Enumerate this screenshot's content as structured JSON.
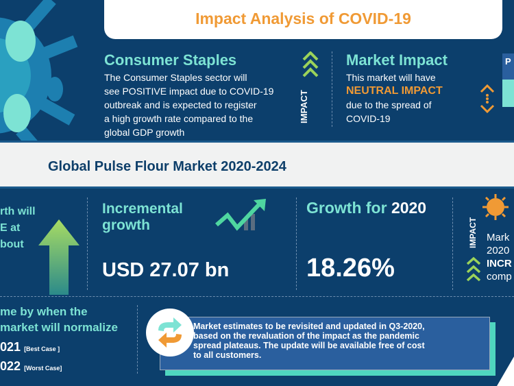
{
  "header": {
    "title": "Impact Analysis of COVID-19"
  },
  "consumer": {
    "title": "Consumer Staples",
    "lines": [
      "The Consumer Staples sector will",
      "see POSITIVE impact due to COVID-19",
      "outbreak and is expected to register",
      "a high growth rate compared to the",
      "global GDP growth"
    ],
    "impact_label": "IMPACT"
  },
  "market_impact": {
    "title": "Market Impact",
    "line1": "This market will have",
    "highlight": "NEUTRAL IMPACT",
    "line2": "due to the spread of",
    "line3": "COVID-19",
    "right_box_label": "P"
  },
  "band": {
    "title": "Global Pulse Flour Market 2020-2024"
  },
  "left_col": {
    "lines": [
      "rth will",
      "E at",
      "bout"
    ]
  },
  "incremental": {
    "title_1": "Incremental",
    "title_2": "growth",
    "value": "USD 27.07 bn"
  },
  "growth": {
    "title": "Growth for",
    "year": "2020",
    "value": "18.26%"
  },
  "right_col": {
    "impact_label": "IMPACT",
    "l1": "Mark",
    "l2": "2020",
    "l3": "INCR",
    "l4": "comp"
  },
  "normalize": {
    "l1": "me by when the",
    "l2": "market will normalize",
    "best_year": "021",
    "best_label": "[Best Case ]",
    "worst_year": "022",
    "worst_label": "[Worst Case]"
  },
  "note": {
    "lines": [
      "Market estimates to be revisited and updated in Q3-2020,",
      "based on the revaluation of the impact as the pandemic",
      "spread plateaus. The update will be available free of cost",
      "to all customers."
    ]
  },
  "colors": {
    "navy": "#0c3f6c",
    "teal": "#7de3d4",
    "orange": "#f09a35",
    "green": "#9bd35a"
  }
}
